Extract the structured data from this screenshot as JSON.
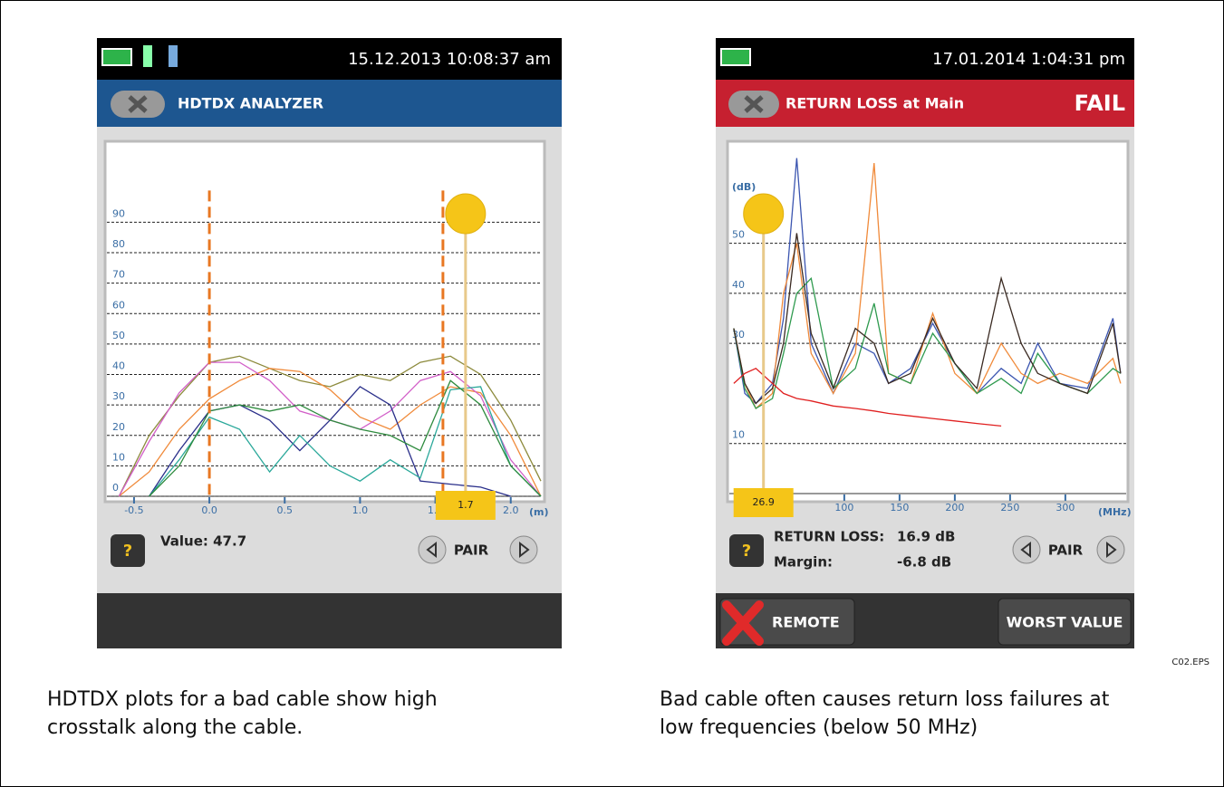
{
  "screens": [
    {
      "status_time": "15.12.2013 10:08:37 am",
      "header_title": "HDTDX ANALYZER",
      "help": "?",
      "readout": [
        "Value: 47.7"
      ],
      "pair": "PAIR"
    },
    {
      "status_time": "17.01.2014 1:04:31 pm",
      "header_title": "RETURN LOSS at Main",
      "header_status": "FAIL",
      "help": "?",
      "readout": [
        "RETURN LOSS:",
        "16.9 dB",
        "Margin:",
        "-6.8 dB"
      ],
      "pair": "PAIR",
      "buttons": [
        "REMOTE",
        "WORST VALUE"
      ]
    }
  ],
  "chart_data": [
    {
      "type": "line",
      "x_unit": "(m)",
      "xlim": [
        -0.68,
        2.2
      ],
      "xticks": [
        -0.5,
        {
          "value": 0,
          "label": "0.0"
        },
        0.5,
        {
          "value": 1,
          "label": "1.0"
        },
        1.5,
        {
          "value": 2,
          "label": "2.0"
        }
      ],
      "ylim": [
        0,
        116
      ],
      "yticks": [
        0,
        10,
        20,
        30,
        40,
        50,
        60,
        70,
        80,
        90
      ],
      "grid": true,
      "x": [
        -0.6,
        -0.4,
        -0.2,
        0,
        0.2,
        0.4,
        0.6,
        0.8,
        1.0,
        1.2,
        1.4,
        1.6,
        1.8,
        2.0,
        2.2
      ],
      "series": [
        {
          "color": "#8c8a3c",
          "values": [
            0,
            20,
            33,
            44,
            46,
            42,
            38,
            36,
            40,
            38,
            44,
            46,
            40,
            25,
            5
          ]
        },
        {
          "color": "#f08a3a",
          "values": [
            0,
            8,
            22,
            32,
            38,
            42,
            41,
            35,
            26,
            22,
            30,
            36,
            34,
            20,
            0
          ]
        },
        {
          "color": "#d25fc8",
          "values": [
            0,
            18,
            34,
            44,
            44,
            38,
            28,
            25,
            22,
            28,
            38,
            41,
            33,
            12,
            0
          ]
        },
        {
          "color": "#2a2f8a",
          "values": [
            null,
            0,
            15,
            28,
            30,
            25,
            15,
            25,
            36,
            30,
            5,
            4,
            3,
            0,
            null
          ]
        },
        {
          "color": "#2aa89a",
          "values": [
            null,
            0,
            12,
            26,
            22,
            8,
            20,
            10,
            5,
            12,
            6,
            35,
            36,
            10,
            0
          ]
        },
        {
          "color": "#2e8b3e",
          "values": [
            null,
            0,
            10,
            28,
            30,
            28,
            30,
            25,
            22,
            20,
            15,
            38,
            30,
            10,
            0
          ]
        }
      ],
      "markers": [
        0,
        1.55
      ],
      "marker_color": "#e87722",
      "cursor": 1.7
    },
    {
      "type": "line",
      "x_unit": "(MHz)",
      "y_unit": "(dB)",
      "xlim": [
        -4,
        355
      ],
      "xticks": [
        100,
        150,
        200,
        250,
        300
      ],
      "ylim": [
        0,
        70
      ],
      "yticks": [
        10,
        30,
        40,
        50
      ],
      "grid": true,
      "x": [
        0,
        10,
        20,
        35,
        45,
        57,
        70,
        90,
        110,
        127,
        140,
        160,
        180,
        200,
        220,
        242,
        260,
        275,
        295,
        320,
        343,
        350
      ],
      "series": [
        {
          "color": "#3b55b0",
          "values": [
            33,
            20,
            18,
            22,
            35,
            67,
            30,
            20,
            30,
            28,
            22,
            25,
            34,
            26,
            20,
            25,
            22,
            30,
            22,
            21,
            35,
            24
          ]
        },
        {
          "color": "#f08a3a",
          "values": [
            33,
            22,
            17,
            20,
            40,
            50,
            28,
            20,
            28,
            66,
            24,
            22,
            36,
            24,
            20,
            30,
            24,
            22,
            24,
            22,
            27,
            22
          ]
        },
        {
          "color": "#2e9a4e",
          "values": [
            33,
            21,
            17,
            19,
            28,
            40,
            43,
            21,
            25,
            38,
            24,
            22,
            32,
            26,
            20,
            23,
            20,
            28,
            22,
            20,
            25,
            24
          ]
        },
        {
          "color": "#3a2a22",
          "values": [
            33,
            22,
            18,
            21,
            30,
            52,
            32,
            21,
            33,
            30,
            22,
            24,
            35,
            26,
            21,
            43,
            30,
            24,
            22,
            20,
            34,
            24
          ]
        },
        {
          "color": "#e02020",
          "values": [
            22,
            24,
            25,
            22,
            20,
            19,
            18.5,
            17.5,
            17,
            16.5,
            16,
            15.5,
            15,
            14.5,
            14,
            13.5,
            null,
            null,
            null,
            null,
            null,
            null
          ]
        }
      ],
      "cursor": 26.9
    }
  ],
  "figure_id": "C02.EPS",
  "captions": [
    [
      "HDTDX plots for a bad cable show high",
      "crosstalk along the cable."
    ],
    [
      "Bad cable often causes return loss failures at",
      "low frequencies (below 50 MHz)"
    ]
  ]
}
